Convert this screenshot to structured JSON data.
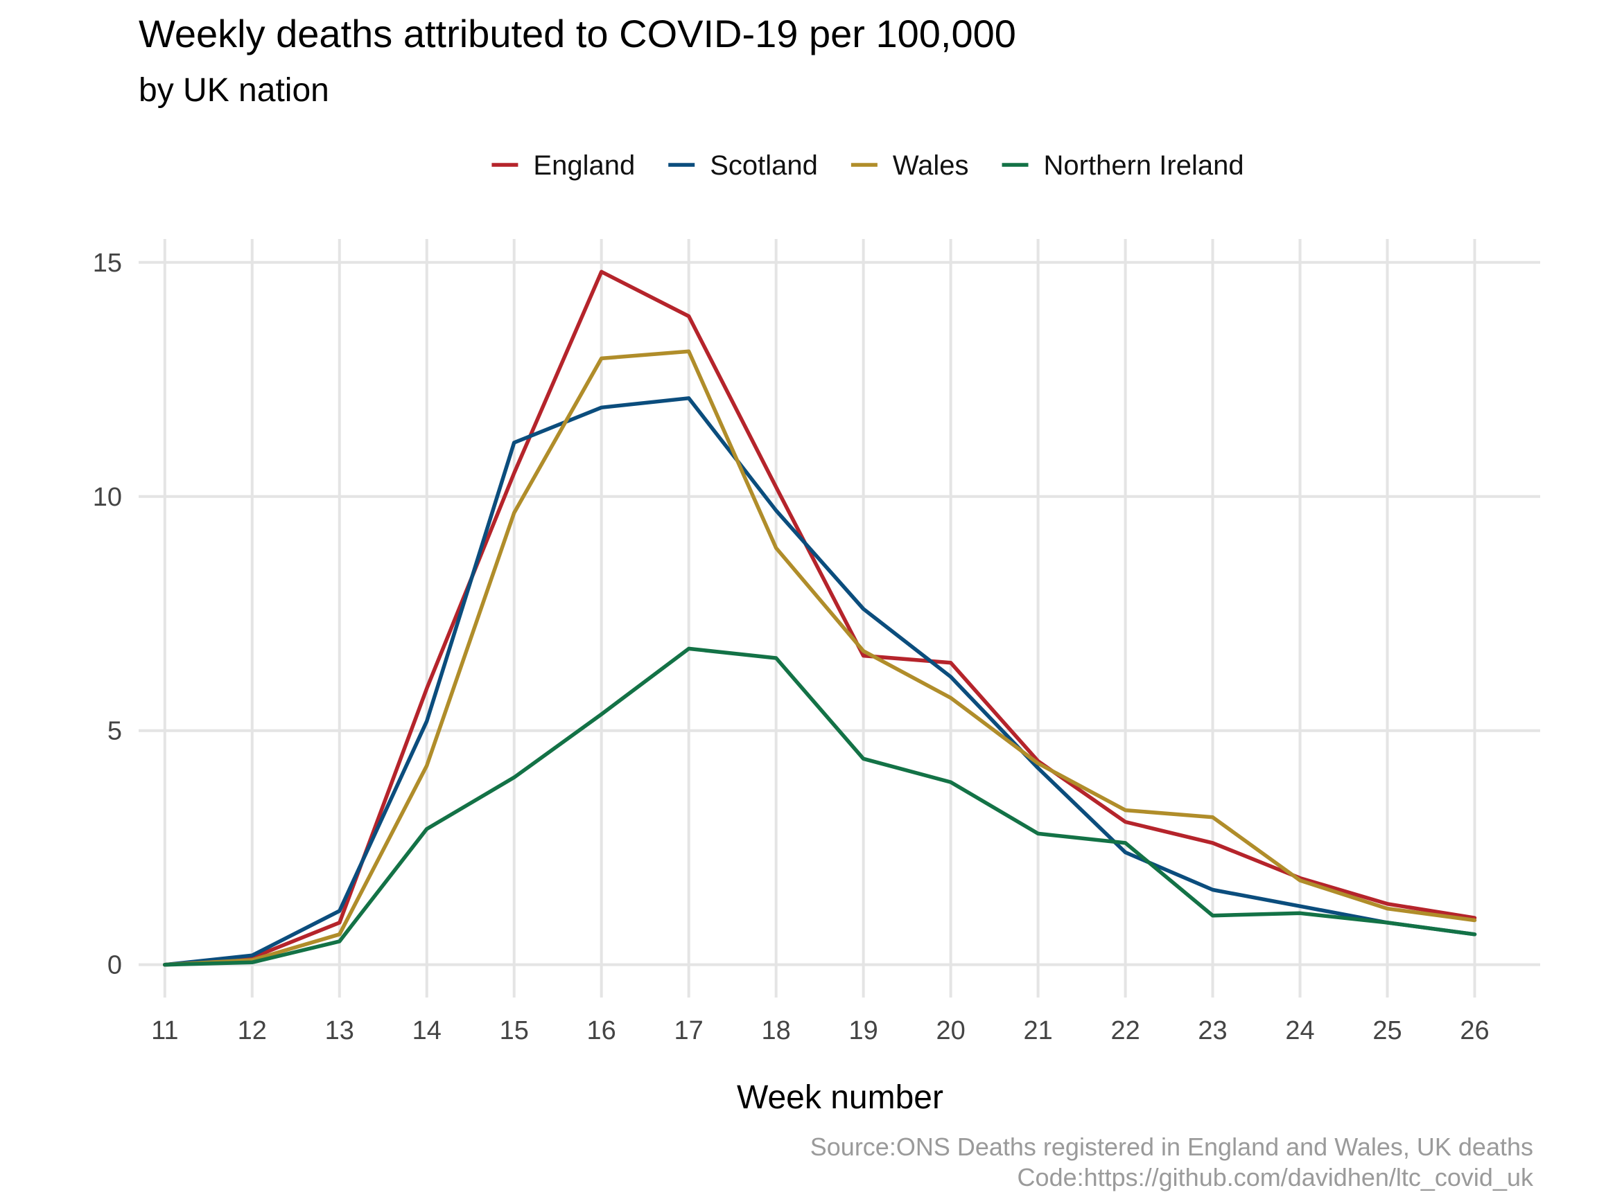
{
  "chart_data": {
    "type": "line",
    "title": "Weekly deaths attributed to COVID-19 per 100,000",
    "subtitle": "by UK nation",
    "xlabel": "Week number",
    "ylabel": "",
    "x": [
      11,
      12,
      13,
      14,
      15,
      16,
      17,
      18,
      19,
      20,
      21,
      22,
      23,
      24,
      25,
      26
    ],
    "xlim": [
      10.7,
      26.75
    ],
    "ylim": [
      -0.7,
      15.5
    ],
    "y_ticks": [
      0,
      5,
      10,
      15
    ],
    "grid": true,
    "legend_position": "top",
    "series": [
      {
        "name": "England",
        "color": "#b5242b",
        "values": [
          0.0,
          0.15,
          0.9,
          5.9,
          10.5,
          14.8,
          13.85,
          10.2,
          6.6,
          6.45,
          4.35,
          3.05,
          2.6,
          1.85,
          1.3,
          1.0
        ]
      },
      {
        "name": "Scotland",
        "color": "#0b4d7d",
        "values": [
          0.0,
          0.2,
          1.15,
          5.2,
          11.15,
          11.9,
          12.1,
          9.7,
          7.6,
          6.15,
          4.2,
          2.4,
          1.6,
          1.25,
          0.9,
          0.65
        ]
      },
      {
        "name": "Wales",
        "color": "#b08d2a",
        "values": [
          0.0,
          0.1,
          0.65,
          4.25,
          9.65,
          12.95,
          13.1,
          8.9,
          6.7,
          5.7,
          4.3,
          3.3,
          3.15,
          1.8,
          1.2,
          0.95
        ]
      },
      {
        "name": "Northern Ireland",
        "color": "#137246",
        "values": [
          0.0,
          0.05,
          0.5,
          2.9,
          4.0,
          5.35,
          6.75,
          6.55,
          4.4,
          3.9,
          2.8,
          2.6,
          1.05,
          1.1,
          0.9,
          0.65
        ]
      }
    ],
    "caption": [
      "Source:ONS Deaths registered in England and Wales, UK deaths",
      "Code:https://github.com/davidhen/ltc_covid_uk"
    ]
  }
}
